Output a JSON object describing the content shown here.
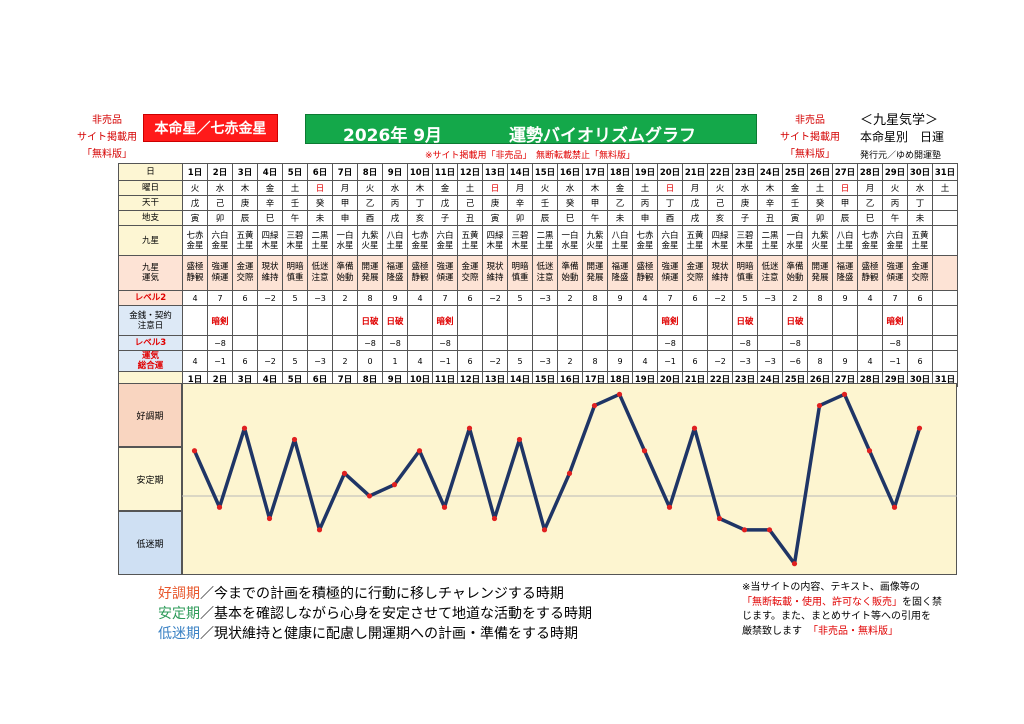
{
  "header": {
    "left_note": [
      "非売品",
      "サイト掲載用",
      "「無料版」"
    ],
    "honmei": "本命星／七赤金星",
    "year_month": "2026年 9月",
    "title": "運勢バイオリズムグラフ",
    "right_note": [
      "非売品",
      "サイト掲載用",
      "「無料版」"
    ],
    "brand_line1": "＜九星気学＞",
    "brand_line2": "本命星別　日運",
    "brand_line3": "発行元／ゆめ開運塾",
    "notice_bar": "※サイト掲載用「非売品」　無断転載禁止「無料版」"
  },
  "table": {
    "labels": {
      "day": "日",
      "weekday": "曜日",
      "tenkan": "天干",
      "chishi": "地支",
      "kyusei": "九星",
      "kyusei_luck": "九星\n運気",
      "level2": "レベル2",
      "kinsen": "金銭・契約\n注意日",
      "level3": "レベル3",
      "total": "運気\n総合運"
    },
    "days": [
      "1日",
      "2日",
      "3日",
      "4日",
      "5日",
      "6日",
      "7日",
      "8日",
      "9日",
      "10日",
      "11日",
      "12日",
      "13日",
      "14日",
      "15日",
      "16日",
      "17日",
      "18日",
      "19日",
      "20日",
      "21日",
      "22日",
      "23日",
      "24日",
      "25日",
      "26日",
      "27日",
      "28日",
      "29日",
      "30日",
      "31日"
    ],
    "weekdays": [
      "火",
      "水",
      "木",
      "金",
      "土",
      "日",
      "月",
      "火",
      "水",
      "木",
      "金",
      "土",
      "日",
      "月",
      "火",
      "水",
      "木",
      "金",
      "土",
      "日",
      "月",
      "火",
      "水",
      "木",
      "金",
      "土",
      "日",
      "月",
      "火",
      "水",
      "土"
    ],
    "tenkan": [
      "戊",
      "己",
      "庚",
      "辛",
      "壬",
      "癸",
      "甲",
      "乙",
      "丙",
      "丁",
      "戊",
      "己",
      "庚",
      "辛",
      "壬",
      "癸",
      "甲",
      "乙",
      "丙",
      "丁",
      "戊",
      "己",
      "庚",
      "辛",
      "壬",
      "癸",
      "甲",
      "乙",
      "丙",
      "丁",
      ""
    ],
    "chishi": [
      "寅",
      "卯",
      "辰",
      "巳",
      "午",
      "未",
      "申",
      "酉",
      "戌",
      "亥",
      "子",
      "丑",
      "寅",
      "卯",
      "辰",
      "巳",
      "午",
      "未",
      "申",
      "酉",
      "戌",
      "亥",
      "子",
      "丑",
      "寅",
      "卯",
      "辰",
      "巳",
      "午",
      "未",
      ""
    ],
    "kyusei": [
      "七赤\n金星",
      "六白\n金星",
      "五黄\n土星",
      "四緑\n木星",
      "三碧\n木星",
      "二黒\n土星",
      "一白\n水星",
      "九紫\n火星",
      "八白\n土星",
      "七赤\n金星",
      "六白\n金星",
      "五黄\n土星",
      "四緑\n木星",
      "三碧\n木星",
      "二黒\n土星",
      "一白\n水星",
      "九紫\n火星",
      "八白\n土星",
      "七赤\n金星",
      "六白\n金星",
      "五黄\n土星",
      "四緑\n木星",
      "三碧\n木星",
      "二黒\n土星",
      "一白\n水星",
      "九紫\n火星",
      "八白\n土星",
      "七赤\n金星",
      "六白\n金星",
      "五黄\n土星",
      ""
    ],
    "kyusei_luck": [
      "盛極\n静観",
      "強運\n傾運",
      "金運\n交際",
      "現状\n維持",
      "明暗\n慎重",
      "低迷\n注意",
      "準備\n始動",
      "開運\n発展",
      "福運\n隆盛",
      "盛極\n静観",
      "強運\n傾運",
      "金運\n交際",
      "現状\n維持",
      "明暗\n慎重",
      "低迷\n注意",
      "準備\n始動",
      "開運\n発展",
      "福運\n隆盛",
      "盛極\n静観",
      "強運\n傾運",
      "金運\n交際",
      "現状\n維持",
      "明暗\n慎重",
      "低迷\n注意",
      "準備\n始動",
      "開運\n発展",
      "福運\n隆盛",
      "盛極\n静観",
      "強運\n傾運",
      "金運\n交際",
      ""
    ],
    "level2": [
      "4",
      "7",
      "6",
      "−2",
      "5",
      "−3",
      "2",
      "8",
      "9",
      "4",
      "7",
      "6",
      "−2",
      "5",
      "−3",
      "2",
      "8",
      "9",
      "4",
      "7",
      "6",
      "−2",
      "5",
      "−3",
      "2",
      "8",
      "9",
      "4",
      "7",
      "6",
      ""
    ],
    "kinsen": [
      "",
      "暗剣",
      "",
      "",
      "",
      "",
      "",
      "日破",
      "日破",
      "",
      "暗剣",
      "",
      "",
      "",
      "",
      "",
      "",
      "",
      "",
      "暗剣",
      "",
      "",
      "日破",
      "",
      "日破",
      "",
      "",
      "",
      "暗剣",
      "",
      ""
    ],
    "level3": [
      "",
      "−8",
      "",
      "",
      "",
      "",
      "",
      "−8",
      "−8",
      "",
      "−8",
      "",
      "",
      "",
      "",
      "",
      "",
      "",
      "",
      "−8",
      "",
      "",
      "−8",
      "",
      "−8",
      "",
      "",
      "",
      "−8",
      "",
      ""
    ],
    "total": [
      "4",
      "−1",
      "6",
      "−2",
      "5",
      "−3",
      "2",
      "0",
      "1",
      "4",
      "−1",
      "6",
      "−2",
      "5",
      "−3",
      "2",
      "8",
      "9",
      "4",
      "−1",
      "6",
      "−2",
      "−3",
      "−3",
      "−6",
      "8",
      "9",
      "4",
      "−1",
      "6",
      ""
    ]
  },
  "zones": {
    "good": "好調期",
    "stable": "安定期",
    "low": "低迷期"
  },
  "chart_data": {
    "type": "line",
    "title": "運勢バイオリズムグラフ",
    "x": [
      "1日",
      "2日",
      "3日",
      "4日",
      "5日",
      "6日",
      "7日",
      "8日",
      "9日",
      "10日",
      "11日",
      "12日",
      "13日",
      "14日",
      "15日",
      "16日",
      "17日",
      "18日",
      "19日",
      "20日",
      "21日",
      "22日",
      "23日",
      "24日",
      "25日",
      "26日",
      "27日",
      "28日",
      "29日",
      "30日"
    ],
    "series": [
      {
        "name": "運気総合運",
        "values": [
          4,
          -1,
          6,
          -2,
          5,
          -3,
          2,
          0,
          1,
          4,
          -1,
          6,
          -2,
          5,
          -3,
          2,
          8,
          9,
          4,
          -1,
          6,
          -2,
          -3,
          -3,
          -6,
          8,
          9,
          4,
          -1,
          6
        ]
      }
    ],
    "ylim": [
      -7,
      10
    ],
    "zones": [
      "好調期",
      "安定期",
      "低迷期"
    ],
    "line_color": "#1f3566",
    "marker_color": "#e02020"
  },
  "legend": [
    {
      "head": "好調期",
      "text": "／今までの計画を積極的に行動に移しチャレンジする時期"
    },
    {
      "head": "安定期",
      "text": "／基本を確認しながら心身を安定させて地道な活動をする時期"
    },
    {
      "head": "低迷期",
      "text": "／現状維持と健康に配慮し開運期への計画・準備をする時期"
    }
  ],
  "notice": {
    "line1": "※当サイトの内容、テキスト、画像等の",
    "line2": "「無断転載・使用、許可なく販売」",
    "line2b": "を固く禁",
    "line3": "じます。また、まとめサイト等への引用を",
    "line4": "厳禁致します",
    "line4b": "「非売品・無料版」"
  }
}
